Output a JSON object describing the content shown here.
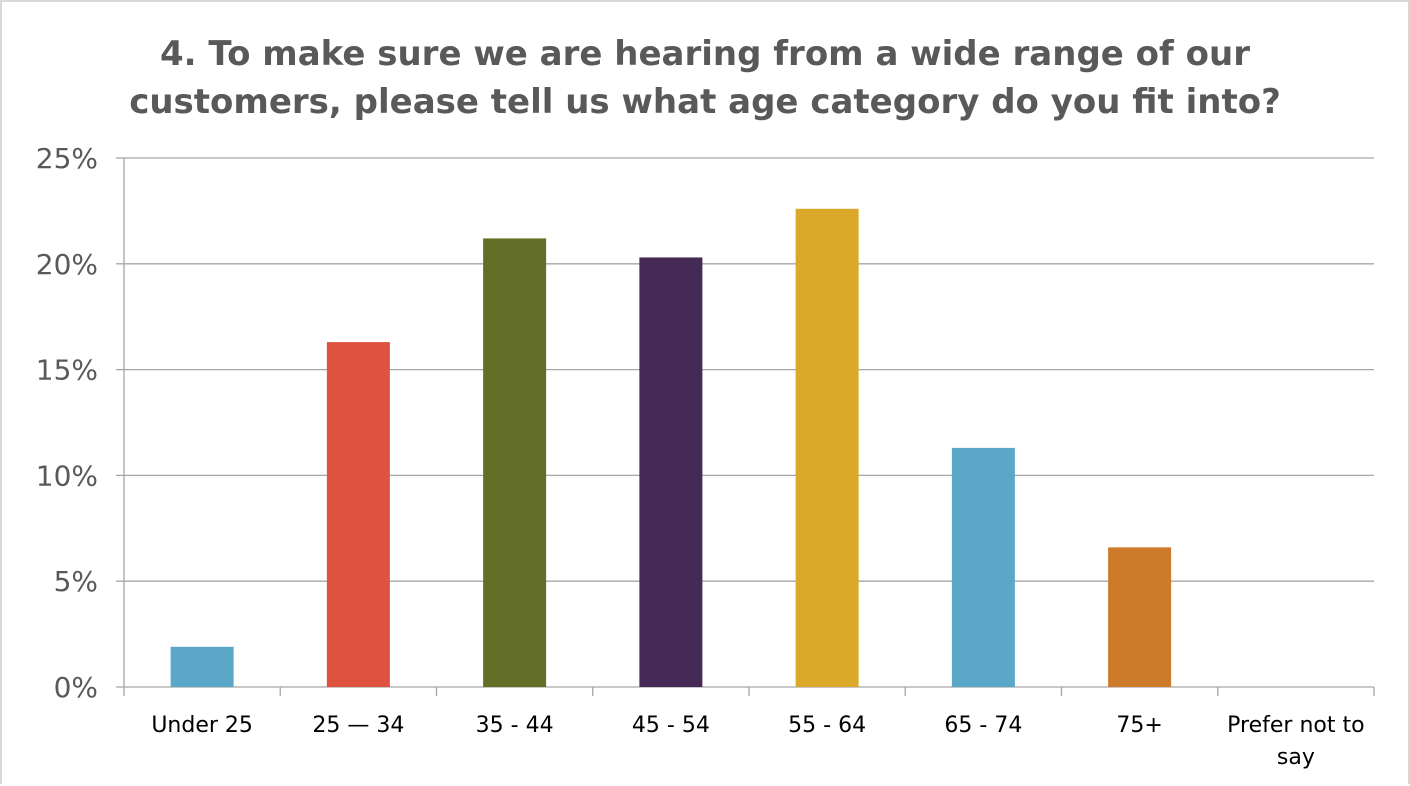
{
  "chart_data": {
    "type": "bar",
    "title_lines": [
      "4. To make sure we are hearing from a wide range of our",
      "customers, please tell us what age category do you fit into?"
    ],
    "xlabel": "",
    "ylabel": "",
    "ylim": [
      0,
      25
    ],
    "y_ticks": [
      "0%",
      "5%",
      "10%",
      "15%",
      "20%",
      "25%"
    ],
    "y_tick_values": [
      0,
      5,
      10,
      15,
      20,
      25
    ],
    "grid": true,
    "legend": "none",
    "categories": [
      [
        "Under 25"
      ],
      [
        "25 — 34"
      ],
      [
        "35 - 44"
      ],
      [
        "45 - 54"
      ],
      [
        "55 - 64"
      ],
      [
        "65 - 74"
      ],
      [
        "75+"
      ],
      [
        "Prefer not to",
        "say"
      ]
    ],
    "values": [
      1.9,
      16.3,
      21.2,
      20.3,
      22.6,
      11.3,
      6.6,
      0
    ],
    "colors": [
      "#5ba7c7",
      "#e05240",
      "#636f26",
      "#452a55",
      "#daa92b",
      "#5ba7c7",
      "#cd7b2b",
      "#5ba7c7"
    ]
  }
}
